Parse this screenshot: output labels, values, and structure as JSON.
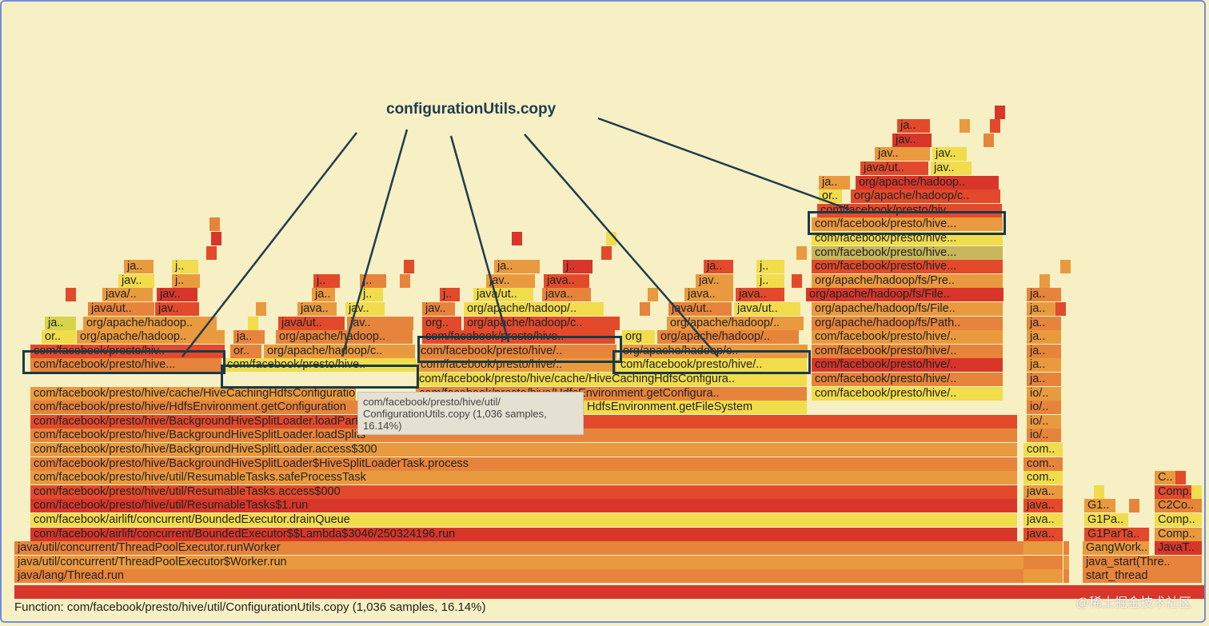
{
  "annotation": {
    "label": "configurationUtils.copy"
  },
  "tooltip": {
    "line1": "com/facebook/presto/hive/util/",
    "line2": "ConfigurationUtils.copy (1,036 samples,",
    "line3": "16.14%)"
  },
  "status": {
    "text": "Function: com/facebook/presto/hive/util/ConfigurationUtils.copy (1,036 samples, 16.14%)"
  },
  "watermark": {
    "text": "@稀土掘金技术社区"
  },
  "colors": {
    "background": "#f7f0c4",
    "frame_red": "#e53826",
    "frame_orange": "#e7843b",
    "frame_yellow": "#f0d84a",
    "highlight_border": "#173b4a",
    "annotation_text": "#1f3c4f"
  },
  "main_stack": [
    "java/lang/Thread.run",
    "java/util/concurrent/ThreadPoolExecutor$Worker.run",
    "java/util/concurrent/ThreadPoolExecutor.runWorker",
    "com/facebook/airlift/concurrent/BoundedExecutor$$Lambda$3046/250324196.run",
    "com/facebook/airlift/concurrent/BoundedExecutor.drainQueue",
    "com/facebook/presto/hive/util/ResumableTasks$1.run",
    "com/facebook/presto/hive/util/ResumableTasks.access$000",
    "com/facebook/presto/hive/util/ResumableTasks.safeProcessTask",
    "com/facebook/presto/hive/BackgroundHiveSplitLoader$HiveSplitLoaderTask.process",
    "com/facebook/presto/hive/BackgroundHiveSplitLoader.access$300",
    "com/facebook/presto/hive/BackgroundHiveSplitLoader.loadSplits",
    "com/facebook/presto/hive/BackgroundHiveSplitLoader.loadPartition",
    "com/facebook/presto/hive/HdfsEnvironment.getConfiguration",
    "HdfsEnvironment.getFileSystem",
    "com/facebook/presto/hive/cache/HiveCachingHdfsConfiguration",
    "com/facebook/presto/hive/HdfsEnvironment.getConfigura..",
    "com/facebook/presto/hive/cache/HiveCachingHdfsConfigura..",
    "com/facebook/presto/hive/.."
  ],
  "frames": {
    "hive_trunc": "com/facebook/presto/hive..",
    "hive_slash": "com/facebook/presto/hive/..",
    "hive_hiv": "com/facebook/presto/hiv..",
    "hive_dots": "com/facebook/presto/hive...",
    "hive_dots2": "com/facebook/presto/hive..",
    "org_hadoop": "org/apache/hadoop..",
    "org_hadoop_slash": "org/apache/hadoop/..",
    "org_hadoop_c": "org/apache/hadoop/c..",
    "org_hadoop_c2": "org/apache/hadoop/c..",
    "org_hadoop_dots": "org/apache/hadoop/..",
    "org_hadoop_p": "org/apache/hadoop..",
    "org_fs_pre": "org/apache/hadoop/fs/Pre..",
    "org_fs_file": "org/apache/hadoop/fs/File..",
    "org_fs_file2": "org/apache/hadoop/fs/File..",
    "org_fs_path": "org/apache/hadoop/fs/Path..",
    "org_short": "or..",
    "org_short2": "org..",
    "org_short3": "org",
    "java_ut": "java/ut..",
    "java_ut2": "java/ut..",
    "java_slash": "java/..",
    "java_dots": "java..",
    "jav": "jav..",
    "jav2": "jav..",
    "ja": "ja..",
    "j": "j..",
    "jav_ut": "java/ut..",
    "io": "io/..",
    "com": "com..",
    "java_r": "java..",
    "g1": "G1..",
    "g1pa": "G1Pa..",
    "g1parta": "G1ParTa..",
    "gangwork": "GangWork..",
    "java_start": "java_start(Thre..",
    "start_thread": "start_thread",
    "c": "C..",
    "comp": "Comp..",
    "c2co": "C2Co..",
    "comp2": "Comp..",
    "javat": "JavaT.."
  }
}
